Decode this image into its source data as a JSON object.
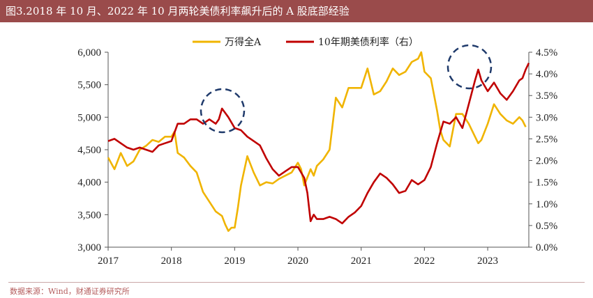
{
  "header": {
    "title": "图3.2018 年 10 月、2022 年 10 月两轮美债利率飙升后的 A 股底部经验"
  },
  "footer": {
    "source": "数据来源：Wind，财通证券研究所"
  },
  "colors": {
    "header_bg": "#9a4b4b",
    "wind_a": "#f0b400",
    "us10y": "#c00000",
    "circle": "#1f3a6b",
    "axis": "#555555"
  },
  "chart_data": {
    "type": "line",
    "title": "图3.2018 年 10 月、2022 年 10 月两轮美债利率飙升后的 A 股底部经验",
    "x_ticks": [
      "2017",
      "2018",
      "2019",
      "2020",
      "2021",
      "2022",
      "2023"
    ],
    "xlim": [
      2017.0,
      2023.65
    ],
    "y_left": {
      "ylim": [
        3000,
        6000
      ],
      "ticks": [
        "3,000",
        "3,500",
        "4,000",
        "4,500",
        "5,000",
        "5,500",
        "6,000"
      ],
      "values": [
        3000,
        3500,
        4000,
        4500,
        5000,
        5500,
        6000
      ]
    },
    "y_right": {
      "ylim": [
        0.0,
        4.5
      ],
      "ticks": [
        "0.0%",
        "0.5%",
        "1.0%",
        "1.5%",
        "2.0%",
        "2.5%",
        "3.0%",
        "3.5%",
        "4.0%",
        "4.5%"
      ],
      "values": [
        0,
        0.5,
        1.0,
        1.5,
        2.0,
        2.5,
        3.0,
        3.5,
        4.0,
        4.5
      ]
    },
    "legend_position": "top-center",
    "series": [
      {
        "name": "万得全A",
        "axis": "left",
        "x": [
          2017.0,
          2017.1,
          2017.2,
          2017.3,
          2017.4,
          2017.5,
          2017.6,
          2017.7,
          2017.8,
          2017.9,
          2018.0,
          2018.05,
          2018.1,
          2018.2,
          2018.3,
          2018.4,
          2018.5,
          2018.6,
          2018.7,
          2018.8,
          2018.85,
          2018.9,
          2018.95,
          2019.0,
          2019.05,
          2019.1,
          2019.2,
          2019.3,
          2019.4,
          2019.5,
          2019.6,
          2019.7,
          2019.8,
          2019.9,
          2020.0,
          2020.05,
          2020.1,
          2020.2,
          2020.25,
          2020.3,
          2020.4,
          2020.5,
          2020.55,
          2020.6,
          2020.7,
          2020.8,
          2020.9,
          2021.0,
          2021.1,
          2021.15,
          2021.2,
          2021.3,
          2021.4,
          2021.5,
          2021.6,
          2021.7,
          2021.8,
          2021.9,
          2021.95,
          2022.0,
          2022.1,
          2022.2,
          2022.25,
          2022.3,
          2022.4,
          2022.5,
          2022.6,
          2022.7,
          2022.8,
          2022.85,
          2022.9,
          2023.0,
          2023.1,
          2023.2,
          2023.3,
          2023.4,
          2023.5,
          2023.55,
          2023.6
        ],
        "values": [
          4380,
          4200,
          4450,
          4250,
          4320,
          4500,
          4560,
          4650,
          4620,
          4700,
          4700,
          4780,
          4450,
          4380,
          4250,
          4150,
          3850,
          3700,
          3550,
          3480,
          3350,
          3250,
          3300,
          3300,
          3600,
          3950,
          4400,
          4150,
          3950,
          4000,
          3980,
          4050,
          4100,
          4150,
          4300,
          4200,
          3950,
          4200,
          4100,
          4250,
          4350,
          4500,
          4900,
          5300,
          5150,
          5450,
          5450,
          5450,
          5750,
          5550,
          5350,
          5400,
          5550,
          5750,
          5650,
          5700,
          5850,
          5900,
          6000,
          5700,
          5600,
          5100,
          4800,
          4650,
          4550,
          5050,
          5050,
          4900,
          4700,
          4600,
          4650,
          4900,
          5200,
          5050,
          4950,
          4900,
          5000,
          4950,
          4850
        ]
      },
      {
        "name": "10年期美债利率（右）",
        "axis": "right",
        "x": [
          2017.0,
          2017.1,
          2017.2,
          2017.3,
          2017.4,
          2017.5,
          2017.6,
          2017.7,
          2017.8,
          2017.9,
          2018.0,
          2018.1,
          2018.2,
          2018.3,
          2018.4,
          2018.5,
          2018.6,
          2018.7,
          2018.75,
          2018.8,
          2018.85,
          2018.9,
          2019.0,
          2019.1,
          2019.2,
          2019.3,
          2019.4,
          2019.5,
          2019.6,
          2019.7,
          2019.8,
          2019.9,
          2020.0,
          2020.1,
          2020.15,
          2020.2,
          2020.25,
          2020.3,
          2020.4,
          2020.5,
          2020.6,
          2020.7,
          2020.8,
          2020.9,
          2021.0,
          2021.1,
          2021.2,
          2021.3,
          2021.4,
          2021.5,
          2021.6,
          2021.7,
          2021.8,
          2021.9,
          2022.0,
          2022.1,
          2022.2,
          2022.3,
          2022.4,
          2022.5,
          2022.6,
          2022.7,
          2022.8,
          2022.85,
          2022.9,
          2023.0,
          2023.1,
          2023.2,
          2023.3,
          2023.4,
          2023.5,
          2023.55,
          2023.6,
          2023.65
        ],
        "values": [
          2.45,
          2.5,
          2.4,
          2.3,
          2.25,
          2.3,
          2.25,
          2.2,
          2.35,
          2.4,
          2.45,
          2.85,
          2.85,
          2.95,
          2.95,
          2.85,
          2.95,
          2.85,
          2.95,
          3.2,
          3.1,
          3.0,
          2.75,
          2.7,
          2.55,
          2.45,
          2.35,
          2.05,
          1.8,
          1.65,
          1.75,
          1.85,
          1.85,
          1.6,
          1.25,
          0.6,
          0.75,
          0.65,
          0.65,
          0.7,
          0.65,
          0.55,
          0.7,
          0.8,
          0.95,
          1.25,
          1.5,
          1.7,
          1.6,
          1.45,
          1.25,
          1.3,
          1.55,
          1.45,
          1.55,
          1.85,
          2.4,
          2.9,
          2.85,
          3.0,
          2.75,
          3.3,
          3.85,
          4.1,
          3.85,
          3.6,
          3.8,
          3.55,
          3.4,
          3.6,
          3.85,
          3.9,
          4.1,
          4.25
        ]
      }
    ]
  }
}
